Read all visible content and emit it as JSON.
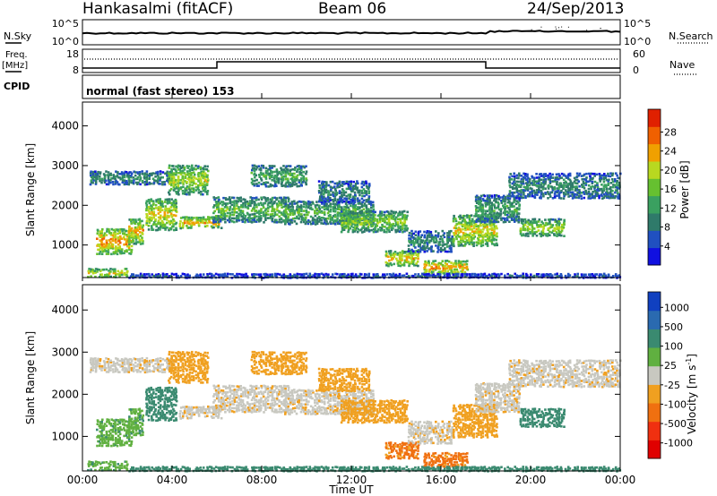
{
  "header": {
    "title": "Hankasalmi (fitACF)",
    "beam": "Beam 06",
    "date": "24/Sep/2013"
  },
  "top_panels": {
    "nsky_label": "N.Sky",
    "nsearch_label": "N.Search",
    "count_ticks": [
      "10^5",
      "10^0"
    ],
    "freq_label": "Freq.",
    "freq_unit": "[MHz]",
    "freq_ticks": [
      "18",
      "8"
    ],
    "nave_ticks": [
      "60",
      "0"
    ],
    "nave_label": "Nave",
    "cpid_label": "CPID",
    "cpid_text": "normal (fast stereo) 153",
    "freq_segments": [
      {
        "t0": 0,
        "t1": 6,
        "level": "low"
      },
      {
        "t0": 6,
        "t1": 18,
        "level": "high"
      },
      {
        "t0": 18,
        "t1": 24,
        "level": "low"
      }
    ]
  },
  "chart_data": [
    {
      "type": "heatmap",
      "name": "power-panel",
      "xlabel": "",
      "ylabel": "Slant Range [km]",
      "xlim": [
        0,
        24
      ],
      "ylim": [
        180,
        4600
      ],
      "yticks": [
        1000,
        2000,
        3000,
        4000
      ],
      "colorbar": {
        "label": "Power [dB]",
        "ticks": [
          "4",
          "8",
          "12",
          "16",
          "20",
          "24",
          "28"
        ],
        "colors": [
          "#1010e0",
          "#2050c0",
          "#2f7a6a",
          "#3aa060",
          "#66c030",
          "#b8d820",
          "#f0a000",
          "#f06000",
          "#e02000"
        ]
      }
    },
    {
      "type": "heatmap",
      "name": "velocity-panel",
      "xlabel": "Time UT",
      "ylabel": "Slant Range [km]",
      "xlim": [
        0,
        24
      ],
      "ylim": [
        180,
        4600
      ],
      "yticks": [
        1000,
        2000,
        3000,
        4000
      ],
      "xticks": [
        "00:00",
        "04:00",
        "08:00",
        "12:00",
        "16:00",
        "20:00",
        "00:00"
      ],
      "colorbar": {
        "label": "Velocity [m s",
        "label_sup": "-1",
        "label_end": "]",
        "ticks": [
          "1000",
          "500",
          "100",
          "25",
          "-25",
          "-100",
          "-500",
          "-1000"
        ],
        "colors": [
          "#1040c0",
          "#2a6ab0",
          "#3a8a70",
          "#60b040",
          "#c8c8c0",
          "#f0a020",
          "#f07010",
          "#f03010",
          "#e00000"
        ]
      }
    }
  ],
  "echo_regions": [
    {
      "t0": 0.3,
      "t1": 4.0,
      "r0": 2550,
      "r1": 2900,
      "p": 13,
      "v": -25
    },
    {
      "t0": 0.6,
      "t1": 2.2,
      "r0": 800,
      "r1": 1450,
      "p": 26,
      "v": 25
    },
    {
      "t0": 2.0,
      "t1": 2.7,
      "r0": 1050,
      "r1": 1700,
      "p": 24,
      "v": 25
    },
    {
      "t0": 2.8,
      "t1": 4.2,
      "r0": 1400,
      "r1": 2200,
      "p": 22,
      "v": 100
    },
    {
      "t0": 3.8,
      "t1": 5.6,
      "r0": 2300,
      "r1": 3050,
      "p": 20,
      "v": -100
    },
    {
      "t0": 4.3,
      "t1": 6.2,
      "r0": 1450,
      "r1": 1750,
      "p": 25,
      "v": -25
    },
    {
      "t0": 5.8,
      "t1": 9.2,
      "r0": 1600,
      "r1": 2250,
      "p": 17,
      "v": -25
    },
    {
      "t0": 7.5,
      "t1": 10.0,
      "r0": 2500,
      "r1": 3050,
      "p": 15,
      "v": -100
    },
    {
      "t0": 9.0,
      "t1": 13.0,
      "r0": 1550,
      "r1": 2150,
      "p": 16,
      "v": -25
    },
    {
      "t0": 10.5,
      "t1": 12.8,
      "r0": 2100,
      "r1": 2650,
      "p": 12,
      "v": -100
    },
    {
      "t0": 11.5,
      "t1": 14.5,
      "r0": 1350,
      "r1": 1900,
      "p": 19,
      "v": -100
    },
    {
      "t0": 13.5,
      "t1": 15.0,
      "r0": 500,
      "r1": 900,
      "p": 24,
      "v": -500
    },
    {
      "t0": 14.5,
      "t1": 16.5,
      "r0": 850,
      "r1": 1400,
      "p": 12,
      "v": -25
    },
    {
      "t0": 15.2,
      "t1": 17.2,
      "r0": 300,
      "r1": 650,
      "p": 26,
      "v": -500
    },
    {
      "t0": 16.5,
      "t1": 18.5,
      "r0": 1000,
      "r1": 1800,
      "p": 22,
      "v": -100
    },
    {
      "t0": 17.5,
      "t1": 19.5,
      "r0": 1600,
      "r1": 2300,
      "p": 14,
      "v": -25
    },
    {
      "t0": 19.5,
      "t1": 21.5,
      "r0": 1250,
      "r1": 1700,
      "p": 20,
      "v": 100
    },
    {
      "t0": 19.0,
      "t1": 24.0,
      "r0": 2200,
      "r1": 2850,
      "p": 12,
      "v": -25
    },
    {
      "t0": 0.2,
      "t1": 2.0,
      "r0": 220,
      "r1": 450,
      "p": 24,
      "v": 25
    },
    {
      "t0": 2.0,
      "t1": 24.0,
      "r0": 200,
      "r1": 320,
      "p": 9,
      "v": 100
    }
  ]
}
